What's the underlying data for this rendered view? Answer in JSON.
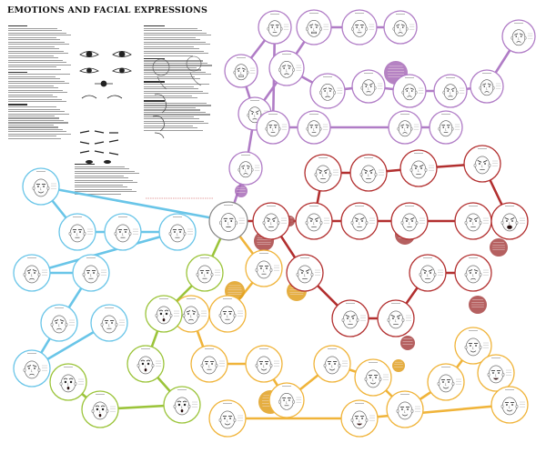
{
  "title": "EMOTIONS AND FACIAL EXPRESSIONS",
  "subtitle": "",
  "colors": {
    "background": "#ffffff",
    "neutral_ring": "#8a8a8a",
    "purple_branch": "#b07cc6",
    "red_branch": "#b22f2f",
    "orange_branch": "#f0b43a",
    "yellow_branch": "#d6cf3a",
    "green_branch": "#9bc43a",
    "blue_branch": "#69c5e8",
    "annotation_red": "#a84444",
    "annotation_orange": "#e0a020",
    "annotation_purple": "#a86cb8"
  },
  "faces": [
    {
      "id": "n0",
      "branch": "neutral",
      "expr": "neutral"
    },
    {
      "id": "p1",
      "branch": "purple",
      "expr": "sad"
    },
    {
      "id": "p2",
      "branch": "purple",
      "expr": "frown"
    },
    {
      "id": "p3",
      "branch": "purple",
      "expr": "sad"
    },
    {
      "id": "p4",
      "branch": "purple",
      "expr": "grimace"
    },
    {
      "id": "p5",
      "branch": "purple",
      "expr": "grimace"
    },
    {
      "id": "p6",
      "branch": "purple",
      "expr": "neutral"
    },
    {
      "id": "p7",
      "branch": "purple",
      "expr": "sad"
    },
    {
      "id": "p8",
      "branch": "purple",
      "expr": "frown"
    },
    {
      "id": "p9",
      "branch": "purple",
      "expr": "sad"
    },
    {
      "id": "p10",
      "branch": "purple",
      "expr": "frown"
    },
    {
      "id": "p11",
      "branch": "purple",
      "expr": "sad"
    },
    {
      "id": "p12",
      "branch": "purple",
      "expr": "sad"
    },
    {
      "id": "p13",
      "branch": "purple",
      "expr": "neutral"
    },
    {
      "id": "p14",
      "branch": "purple",
      "expr": "sad"
    },
    {
      "id": "p15",
      "branch": "purple",
      "expr": "neutral"
    },
    {
      "id": "p16",
      "branch": "purple",
      "expr": "neutral"
    },
    {
      "id": "p17",
      "branch": "purple",
      "expr": "sad"
    },
    {
      "id": "p18",
      "branch": "purple",
      "expr": "neutral"
    },
    {
      "id": "r1",
      "branch": "red",
      "expr": "frown"
    },
    {
      "id": "r2",
      "branch": "red",
      "expr": "frown"
    },
    {
      "id": "r3",
      "branch": "red",
      "expr": "angry"
    },
    {
      "id": "r4",
      "branch": "red",
      "expr": "angry"
    },
    {
      "id": "r5",
      "branch": "red",
      "expr": "angry"
    },
    {
      "id": "r6",
      "branch": "red",
      "expr": "frown"
    },
    {
      "id": "r7",
      "branch": "red",
      "expr": "frown"
    },
    {
      "id": "r8",
      "branch": "red",
      "expr": "angry"
    },
    {
      "id": "r9",
      "branch": "red",
      "expr": "angry"
    },
    {
      "id": "r10",
      "branch": "red",
      "expr": "scream"
    },
    {
      "id": "r11",
      "branch": "red",
      "expr": "frown"
    },
    {
      "id": "r12",
      "branch": "red",
      "expr": "angry"
    },
    {
      "id": "r13",
      "branch": "red",
      "expr": "frown"
    },
    {
      "id": "r14",
      "branch": "red",
      "expr": "frown"
    },
    {
      "id": "r15",
      "branch": "red",
      "expr": "sad"
    },
    {
      "id": "o1",
      "branch": "orange",
      "expr": "neutral"
    },
    {
      "id": "o2",
      "branch": "orange",
      "expr": "neutral"
    },
    {
      "id": "o3",
      "branch": "orange",
      "expr": "sad"
    },
    {
      "id": "o4",
      "branch": "orange",
      "expr": "neutral"
    },
    {
      "id": "o5",
      "branch": "orange",
      "expr": "smile"
    },
    {
      "id": "o6",
      "branch": "orange",
      "expr": "neutral"
    },
    {
      "id": "o7",
      "branch": "orange",
      "expr": "smile"
    },
    {
      "id": "o8",
      "branch": "orange",
      "expr": "smile"
    },
    {
      "id": "o9",
      "branch": "orange",
      "expr": "smile"
    },
    {
      "id": "o10",
      "branch": "orange",
      "expr": "smile"
    },
    {
      "id": "o11",
      "branch": "orange",
      "expr": "smile"
    },
    {
      "id": "o12",
      "branch": "orange",
      "expr": "laugh"
    },
    {
      "id": "o13",
      "branch": "orange",
      "expr": "smile"
    },
    {
      "id": "o14",
      "branch": "orange",
      "expr": "laugh"
    },
    {
      "id": "o15",
      "branch": "orange",
      "expr": "smile"
    },
    {
      "id": "g1",
      "branch": "green",
      "expr": "neutral"
    },
    {
      "id": "g2",
      "branch": "green",
      "expr": "surprise"
    },
    {
      "id": "g3",
      "branch": "green",
      "expr": "surprise"
    },
    {
      "id": "g4",
      "branch": "green",
      "expr": "surprise"
    },
    {
      "id": "g5",
      "branch": "green",
      "expr": "surprise"
    },
    {
      "id": "g6",
      "branch": "green",
      "expr": "surprise"
    },
    {
      "id": "b1",
      "branch": "blue",
      "expr": "smile"
    },
    {
      "id": "b2",
      "branch": "blue",
      "expr": "neutral"
    },
    {
      "id": "b3",
      "branch": "blue",
      "expr": "neutral"
    },
    {
      "id": "b4",
      "branch": "blue",
      "expr": "neutral"
    },
    {
      "id": "b5",
      "branch": "blue",
      "expr": "sad"
    },
    {
      "id": "b6",
      "branch": "blue",
      "expr": "neutral"
    },
    {
      "id": "b7",
      "branch": "blue",
      "expr": "sad"
    },
    {
      "id": "b8",
      "branch": "blue",
      "expr": "sad"
    },
    {
      "id": "b9",
      "branch": "blue",
      "expr": "neutral"
    }
  ],
  "notes": [
    {
      "id": "np1",
      "tone": "purple"
    },
    {
      "id": "np2",
      "tone": "purple"
    },
    {
      "id": "nr1",
      "tone": "red"
    },
    {
      "id": "nr2",
      "tone": "red"
    },
    {
      "id": "nr3",
      "tone": "red"
    },
    {
      "id": "nr4",
      "tone": "red"
    },
    {
      "id": "nr5",
      "tone": "red"
    },
    {
      "id": "nr6",
      "tone": "red"
    },
    {
      "id": "nr7",
      "tone": "red"
    },
    {
      "id": "no1",
      "tone": "orange"
    },
    {
      "id": "no2",
      "tone": "orange"
    },
    {
      "id": "no3",
      "tone": "orange"
    },
    {
      "id": "no4",
      "tone": "orange"
    }
  ],
  "edges": [
    [
      "n0",
      "p1"
    ],
    [
      "p1",
      "p2"
    ],
    [
      "p2",
      "p3"
    ],
    [
      "p2",
      "p4"
    ],
    [
      "p3",
      "p5"
    ],
    [
      "p4",
      "p6"
    ],
    [
      "p3",
      "p7"
    ],
    [
      "p7",
      "p8"
    ],
    [
      "p8",
      "p9"
    ],
    [
      "p9",
      "p10"
    ],
    [
      "p10",
      "p11"
    ],
    [
      "p11",
      "p12"
    ],
    [
      "p5",
      "p13"
    ],
    [
      "p13",
      "p14"
    ],
    [
      "p6",
      "p15"
    ],
    [
      "p15",
      "p16"
    ],
    [
      "p16",
      "p17"
    ],
    [
      "p17",
      "p18"
    ],
    [
      "n0",
      "r1"
    ],
    [
      "r1",
      "r2"
    ],
    [
      "r2",
      "r3"
    ],
    [
      "r3",
      "r4"
    ],
    [
      "r4",
      "r5"
    ],
    [
      "r2",
      "r6"
    ],
    [
      "r6",
      "r7"
    ],
    [
      "r7",
      "r8"
    ],
    [
      "r8",
      "r9"
    ],
    [
      "r9",
      "r10"
    ],
    [
      "r1",
      "r11"
    ],
    [
      "r11",
      "r12"
    ],
    [
      "r12",
      "r13"
    ],
    [
      "r13",
      "r14"
    ],
    [
      "r14",
      "r15"
    ],
    [
      "n0",
      "o1"
    ],
    [
      "o1",
      "o2"
    ],
    [
      "o2",
      "o3"
    ],
    [
      "o3",
      "o4"
    ],
    [
      "o4",
      "o5"
    ],
    [
      "o5",
      "o6"
    ],
    [
      "o6",
      "o7"
    ],
    [
      "o7",
      "o8"
    ],
    [
      "o8",
      "o9"
    ],
    [
      "o9",
      "o10"
    ],
    [
      "o10",
      "o11"
    ],
    [
      "o11",
      "o12"
    ],
    [
      "o12",
      "o13"
    ],
    [
      "o13",
      "o14"
    ],
    [
      "o14",
      "o15"
    ],
    [
      "n0",
      "g1"
    ],
    [
      "g1",
      "g2"
    ],
    [
      "g2",
      "g3"
    ],
    [
      "g3",
      "g4"
    ],
    [
      "g4",
      "g5"
    ],
    [
      "g5",
      "g6"
    ],
    [
      "n0",
      "b1"
    ],
    [
      "b1",
      "b2"
    ],
    [
      "b2",
      "b3"
    ],
    [
      "b3",
      "b4"
    ],
    [
      "b4",
      "b5"
    ],
    [
      "b5",
      "b6"
    ],
    [
      "b6",
      "b7"
    ],
    [
      "b7",
      "b8"
    ],
    [
      "b8",
      "b9"
    ]
  ]
}
